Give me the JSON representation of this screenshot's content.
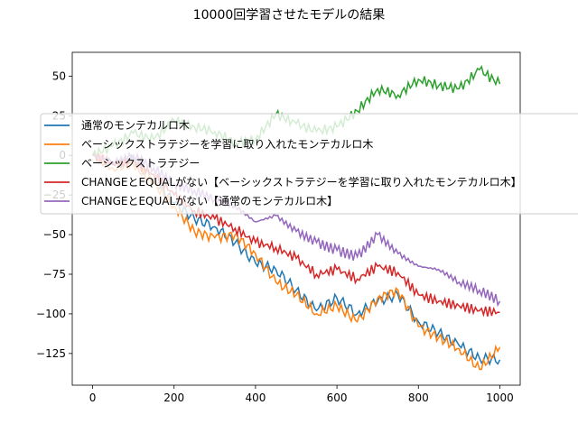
{
  "chart_data": {
    "type": "line",
    "title": "10000回学習させたモデルの結果",
    "xlabel": "",
    "ylabel": "",
    "xlim": [
      -50,
      1050
    ],
    "ylim": [
      -145,
      65
    ],
    "xticks": [
      0,
      200,
      400,
      600,
      800,
      1000
    ],
    "yticks": [
      50,
      25,
      0,
      -25,
      -50,
      -75,
      -100,
      -125
    ],
    "xtick_labels": [
      "0",
      "200",
      "400",
      "600",
      "800",
      "1000"
    ],
    "ytick_labels": [
      "50",
      "25",
      "0",
      "−25",
      "−50",
      "−75",
      "−100",
      "−125"
    ],
    "grid": false,
    "legend_position": "upper-left",
    "series": [
      {
        "name": "通常のモンテカルロ木",
        "color": "#1f77b4",
        "x": [
          0,
          50,
          100,
          150,
          200,
          250,
          300,
          350,
          400,
          450,
          500,
          550,
          600,
          650,
          700,
          750,
          800,
          850,
          900,
          950,
          1000
        ],
        "y": [
          0,
          -6,
          -2,
          -15,
          -30,
          -40,
          -45,
          -55,
          -68,
          -72,
          -85,
          -98,
          -90,
          -100,
          -92,
          -88,
          -105,
          -112,
          -120,
          -128,
          -129
        ]
      },
      {
        "name": "ベーシックストラテジーを学習に取り入れたモンテカルロ木",
        "color": "#ff7f0e",
        "x": [
          0,
          50,
          100,
          150,
          200,
          250,
          300,
          350,
          400,
          450,
          500,
          550,
          600,
          650,
          700,
          750,
          800,
          850,
          900,
          950,
          1000
        ],
        "y": [
          0,
          -8,
          -6,
          -18,
          -32,
          -48,
          -52,
          -50,
          -62,
          -80,
          -88,
          -100,
          -95,
          -105,
          -90,
          -85,
          -108,
          -115,
          -122,
          -135,
          -121
        ]
      },
      {
        "name": "ベーシックストラテジー",
        "color": "#2ca02c",
        "x": [
          0,
          50,
          100,
          150,
          200,
          250,
          300,
          350,
          400,
          450,
          500,
          550,
          600,
          650,
          700,
          750,
          800,
          850,
          900,
          950,
          1000
        ],
        "y": [
          0,
          6,
          14,
          10,
          22,
          18,
          15,
          8,
          10,
          26,
          20,
          15,
          18,
          28,
          42,
          38,
          48,
          44,
          42,
          54,
          45
        ]
      },
      {
        "name": "CHANGEとEQUALがない【ベーシックストラテジーを学習に取り入れたモンテカルロ木】",
        "color": "#d62728",
        "x": [
          0,
          50,
          100,
          150,
          200,
          250,
          300,
          350,
          400,
          450,
          500,
          550,
          600,
          650,
          700,
          750,
          800,
          850,
          900,
          950,
          1000
        ],
        "y": [
          0,
          -5,
          -4,
          -12,
          -25,
          -35,
          -40,
          -46,
          -55,
          -58,
          -65,
          -75,
          -72,
          -78,
          -70,
          -74,
          -88,
          -92,
          -95,
          -98,
          -99
        ]
      },
      {
        "name": "CHANGEとEQUALがない【通常のモンテカルロ木】",
        "color": "#9467bd",
        "x": [
          0,
          50,
          100,
          150,
          200,
          250,
          300,
          350,
          400,
          450,
          500,
          550,
          600,
          650,
          700,
          750,
          800,
          850,
          900,
          950,
          1000
        ],
        "y": [
          0,
          -4,
          0,
          -8,
          -18,
          -22,
          -28,
          -32,
          -42,
          -38,
          -48,
          -55,
          -60,
          -64,
          -50,
          -62,
          -70,
          -72,
          -80,
          -85,
          -92
        ]
      }
    ]
  }
}
